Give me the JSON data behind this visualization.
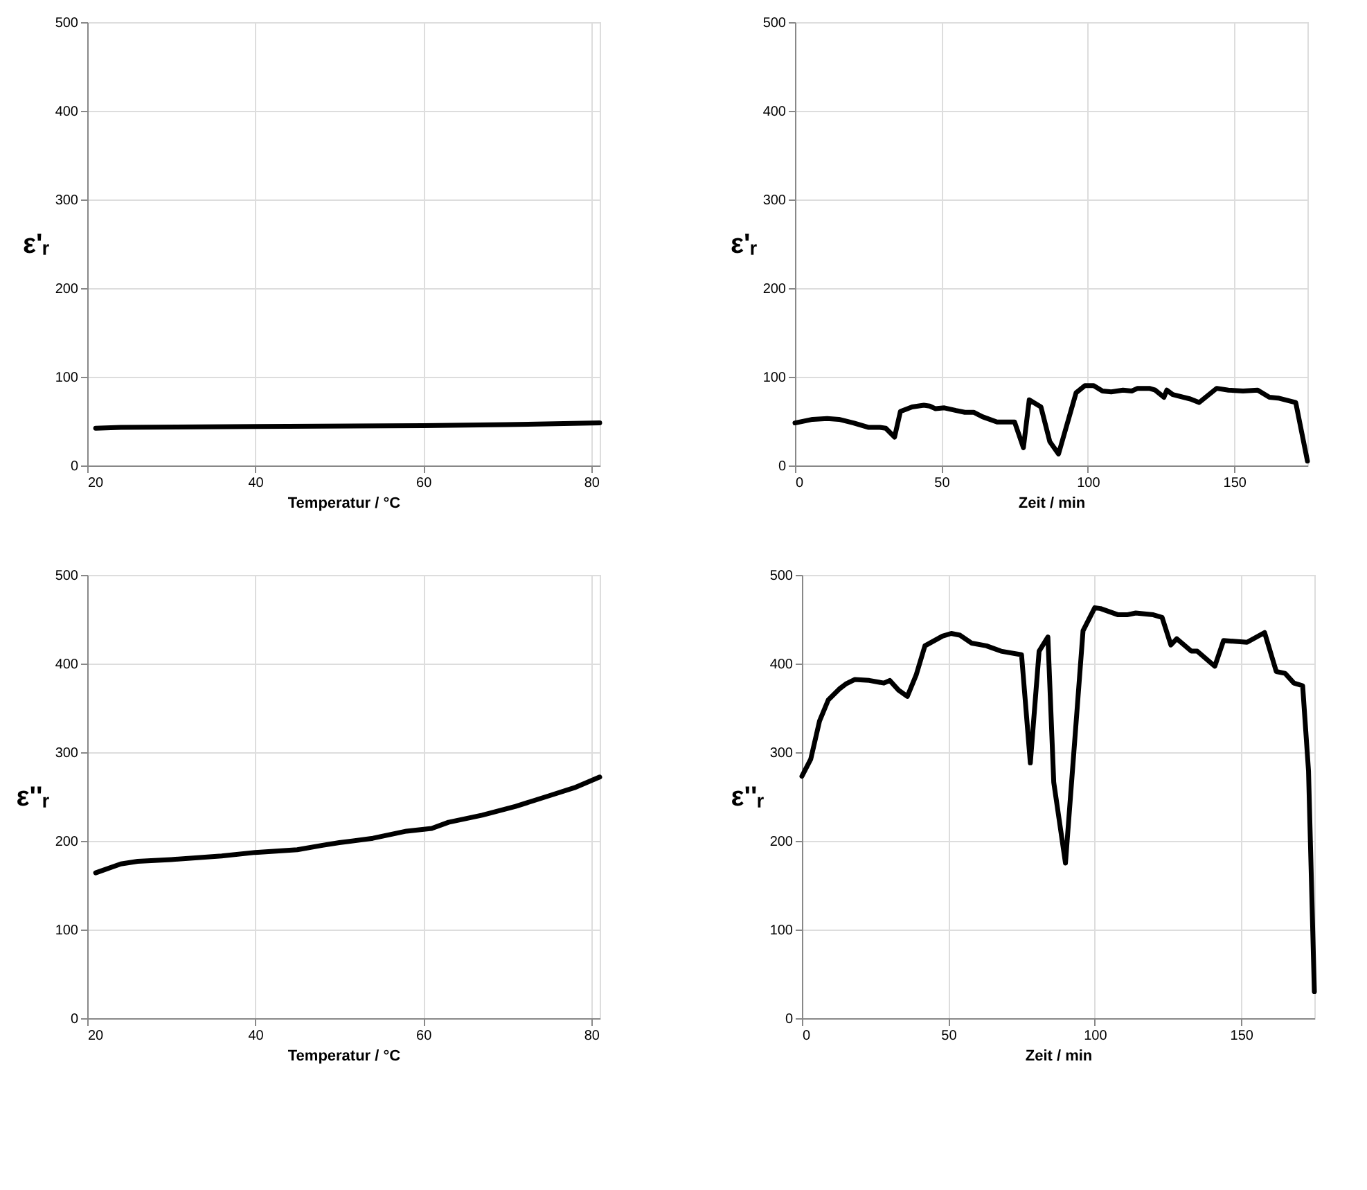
{
  "chart_data": [
    {
      "type": "line",
      "xlabel": "Temperatur / °C",
      "ylabel": "ε'ᵣ",
      "xlim": [
        20,
        81
      ],
      "xticks": [
        20,
        40,
        60,
        80
      ],
      "ylim": [
        0,
        500
      ],
      "yticks": [
        0,
        100,
        200,
        300,
        400,
        500
      ],
      "grid": true,
      "line_style": "solid",
      "series": [
        {
          "color": "#000000",
          "x": [
            21,
            24,
            40,
            60,
            70,
            81
          ],
          "values": [
            42,
            43,
            44,
            45,
            46,
            48
          ]
        }
      ]
    },
    {
      "type": "line",
      "xlabel": "Zeit / min",
      "ylabel": "ε'ᵣ",
      "xlim": [
        0,
        175
      ],
      "xticks": [
        0,
        50,
        100,
        150
      ],
      "ylim": [
        0,
        500
      ],
      "yticks": [
        0,
        100,
        200,
        300,
        400,
        500
      ],
      "grid": true,
      "line_style": "solid",
      "series": [
        {
          "color": "#000000",
          "x": [
            0,
            6,
            11,
            15,
            20,
            25,
            29,
            31,
            34,
            36,
            40,
            44,
            46,
            48,
            51,
            55,
            58,
            61,
            64,
            69,
            72,
            75,
            78,
            80,
            84,
            87,
            90,
            96,
            99,
            102,
            105,
            108,
            112,
            115,
            117,
            121,
            123,
            126,
            127,
            129,
            135,
            138,
            144,
            148,
            153,
            158,
            162,
            165,
            171,
            175
          ],
          "values": [
            48,
            52,
            53,
            52,
            48,
            43,
            43,
            42,
            32,
            61,
            66,
            68,
            67,
            64,
            65,
            62,
            60,
            60,
            55,
            49,
            49,
            49,
            20,
            74,
            66,
            27,
            13,
            82,
            90,
            90,
            84,
            83,
            85,
            84,
            87,
            87,
            85,
            77,
            85,
            80,
            75,
            71,
            87,
            85,
            84,
            85,
            77,
            76,
            71,
            5
          ]
        }
      ]
    },
    {
      "type": "line",
      "xlabel": "Temperatur / °C",
      "ylabel": "ε''ᵣ",
      "xlim": [
        20,
        81
      ],
      "xticks": [
        20,
        40,
        60,
        80
      ],
      "ylim": [
        0,
        500
      ],
      "yticks": [
        0,
        100,
        200,
        300,
        400,
        500
      ],
      "grid": true,
      "line_style": "solid",
      "series": [
        {
          "color": "#000000",
          "x": [
            21,
            24,
            26,
            30,
            36,
            40,
            45,
            48,
            50,
            54,
            58,
            61,
            63,
            67,
            71,
            75,
            78,
            81
          ],
          "values": [
            164,
            174,
            177,
            179,
            183,
            187,
            190,
            195,
            198,
            203,
            211,
            214,
            221,
            229,
            239,
            251,
            260,
            272
          ]
        }
      ]
    },
    {
      "type": "line",
      "xlabel": "Zeit / min",
      "ylabel": "ε''ᵣ",
      "xlim": [
        0,
        175
      ],
      "xticks": [
        0,
        50,
        100,
        150
      ],
      "ylim": [
        0,
        500
      ],
      "yticks": [
        0,
        100,
        200,
        300,
        400,
        500
      ],
      "grid": true,
      "line_style": "solid",
      "series": [
        {
          "color": "#000000",
          "x": [
            0,
            3,
            6,
            9,
            13,
            15,
            18,
            23,
            28,
            30,
            33,
            36,
            39,
            42,
            48,
            51,
            54,
            58,
            63,
            68,
            75,
            78,
            81,
            84,
            86,
            90,
            96,
            100,
            102,
            108,
            111,
            114,
            120,
            123,
            126,
            128,
            133,
            135,
            141,
            144,
            152,
            158,
            162,
            165,
            168,
            171,
            173,
            175
          ],
          "values": [
            273,
            292,
            335,
            359,
            372,
            377,
            382,
            381,
            378,
            381,
            370,
            363,
            387,
            420,
            431,
            434,
            432,
            423,
            420,
            414,
            410,
            288,
            414,
            430,
            266,
            175,
            437,
            463,
            462,
            455,
            455,
            457,
            455,
            452,
            421,
            428,
            414,
            414,
            397,
            426,
            424,
            435,
            391,
            389,
            378,
            375,
            279,
            30
          ]
        }
      ]
    }
  ]
}
